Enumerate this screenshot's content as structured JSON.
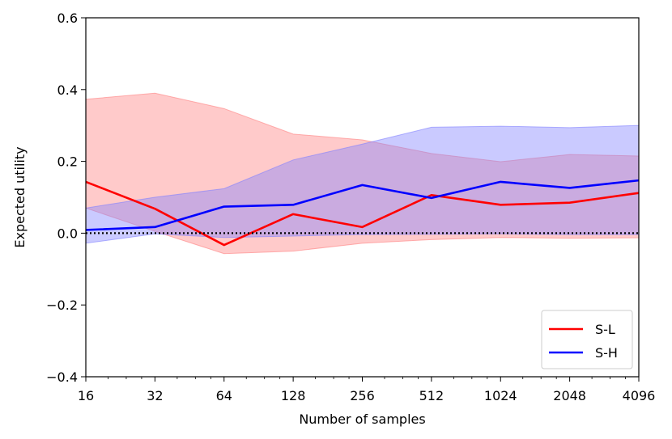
{
  "chart_data": {
    "type": "line",
    "xscale": "log2",
    "x": [
      16,
      32,
      64,
      128,
      256,
      512,
      1024,
      2048,
      4096
    ],
    "xticks": [
      "16",
      "32",
      "64",
      "128",
      "256",
      "512",
      "1024",
      "2048",
      "4096"
    ],
    "xlabel": "Number of samples",
    "ylabel": "Expected utility",
    "ylim": [
      -0.4,
      0.6
    ],
    "yticks": [
      "−0.4",
      "−0.2",
      "0.0",
      "0.2",
      "0.4",
      "0.6"
    ],
    "ytick_values": [
      -0.4,
      -0.2,
      0.0,
      0.2,
      0.4,
      0.6
    ],
    "reference_line": {
      "y": 0.0,
      "style": "dotted",
      "color": "#000000"
    },
    "legend": {
      "position": "lower-right"
    },
    "grid": false,
    "series": [
      {
        "name": "S-L",
        "color": "#ff0000",
        "band_color": "#ff8080",
        "values": [
          0.143,
          0.068,
          -0.033,
          0.053,
          0.017,
          0.106,
          0.079,
          0.085,
          0.112
        ],
        "upper": [
          0.373,
          0.39,
          0.347,
          0.276,
          0.26,
          0.222,
          0.199,
          0.219,
          0.215
        ],
        "lower": [
          0.07,
          0.005,
          -0.057,
          -0.05,
          -0.028,
          -0.018,
          -0.012,
          -0.014,
          -0.013
        ]
      },
      {
        "name": "S-H",
        "color": "#0000ff",
        "band_color": "#8080ff",
        "values": [
          0.009,
          0.017,
          0.074,
          0.079,
          0.134,
          0.098,
          0.143,
          0.126,
          0.147
        ],
        "upper": [
          0.07,
          0.1,
          0.124,
          0.204,
          0.248,
          0.295,
          0.298,
          0.294,
          0.3
        ],
        "lower": [
          -0.028,
          -0.002,
          -0.012,
          -0.008,
          -0.004,
          -0.003,
          -0.002,
          -0.004,
          -0.004
        ]
      }
    ]
  }
}
